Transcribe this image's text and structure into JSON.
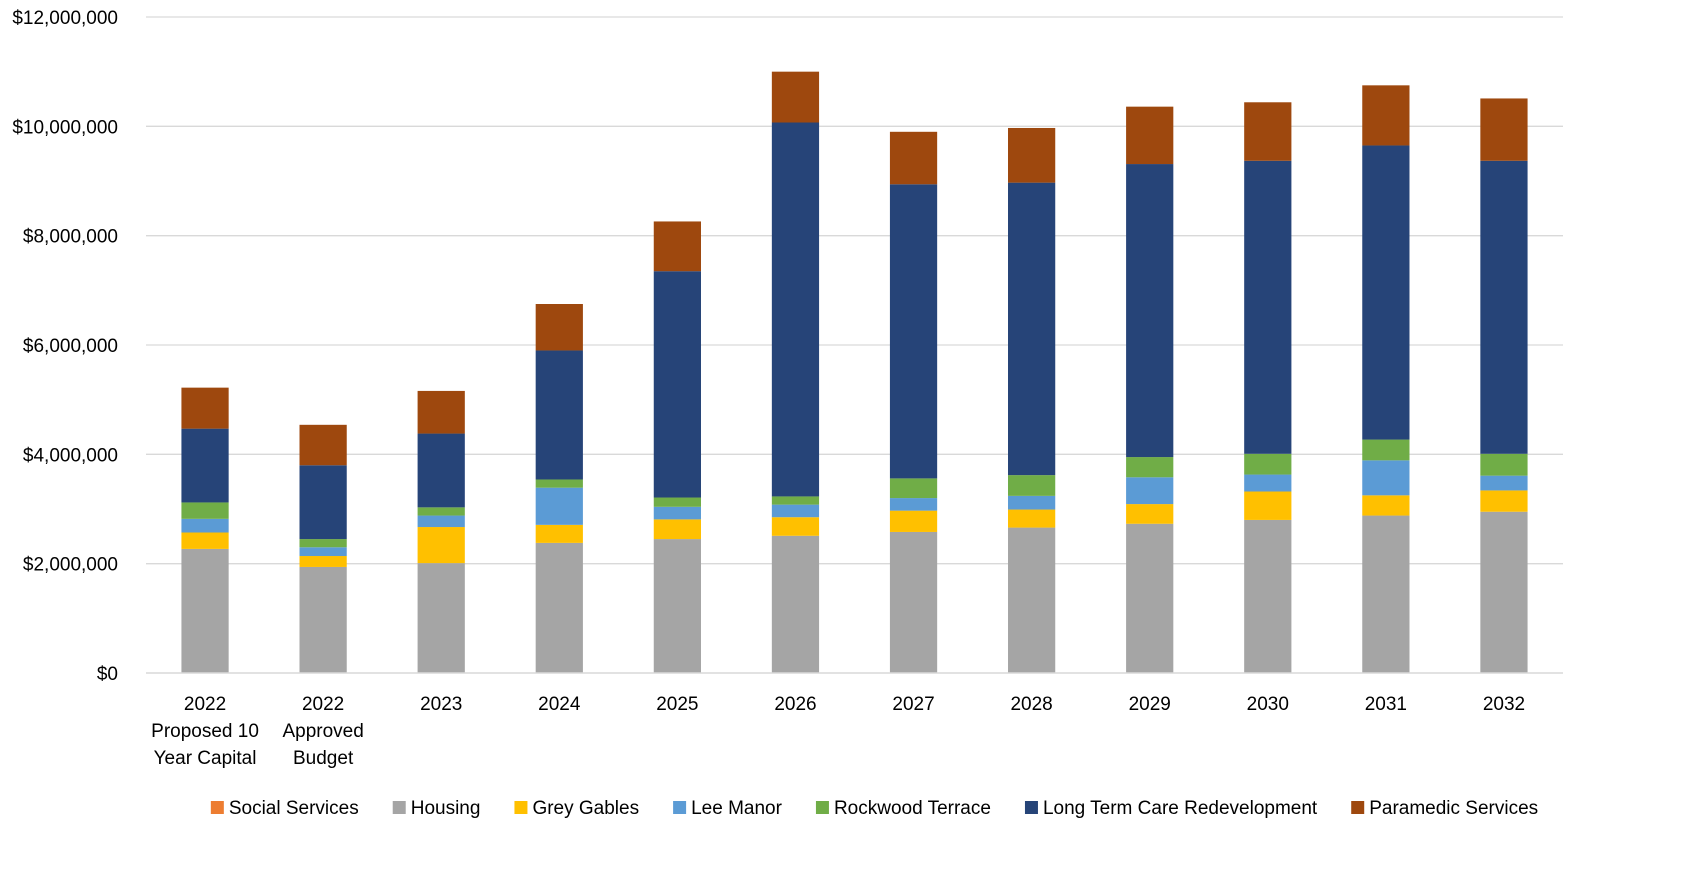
{
  "chart_data": {
    "type": "bar",
    "stacked": true,
    "title": "",
    "xlabel": "",
    "ylabel": "",
    "ylim": [
      0,
      12000000
    ],
    "yticks": [
      0,
      2000000,
      4000000,
      6000000,
      8000000,
      10000000,
      12000000
    ],
    "ytick_labels": [
      "$0",
      "$2,000,000",
      "$4,000,000",
      "$6,000,000",
      "$8,000,000",
      "$10,000,000",
      "$12,000,000"
    ],
    "grid": true,
    "legend_position": "bottom",
    "categories": [
      [
        "2022",
        "Proposed 10",
        "Year Capital"
      ],
      [
        "2022",
        "Approved",
        "Budget"
      ],
      [
        "2023"
      ],
      [
        "2024"
      ],
      [
        "2025"
      ],
      [
        "2026"
      ],
      [
        "2027"
      ],
      [
        "2028"
      ],
      [
        "2029"
      ],
      [
        "2030"
      ],
      [
        "2031"
      ],
      [
        "2032"
      ]
    ],
    "series": [
      {
        "name": "Social Services",
        "color": "#ED7D31",
        "values": [
          0,
          0,
          0,
          0,
          0,
          0,
          0,
          0,
          0,
          0,
          0,
          0
        ]
      },
      {
        "name": "Housing",
        "color": "#A5A5A5",
        "values": [
          2270000,
          1940000,
          2010000,
          2380000,
          2450000,
          2510000,
          2580000,
          2660000,
          2730000,
          2800000,
          2880000,
          2950000
        ]
      },
      {
        "name": "Grey Gables",
        "color": "#FFC000",
        "values": [
          300000,
          200000,
          660000,
          330000,
          360000,
          340000,
          390000,
          330000,
          360000,
          520000,
          370000,
          390000
        ]
      },
      {
        "name": "Lee Manor",
        "color": "#5B9BD5",
        "values": [
          250000,
          160000,
          210000,
          680000,
          230000,
          230000,
          230000,
          250000,
          490000,
          310000,
          640000,
          270000
        ]
      },
      {
        "name": "Rockwood Terrace",
        "color": "#70AD47",
        "values": [
          300000,
          150000,
          150000,
          150000,
          170000,
          150000,
          360000,
          380000,
          370000,
          380000,
          380000,
          400000
        ]
      },
      {
        "name": "Long Term Care Redevelopment",
        "color": "#264478",
        "values": [
          1350000,
          1350000,
          1350000,
          2360000,
          4140000,
          6840000,
          5380000,
          5350000,
          5360000,
          5360000,
          5380000,
          5360000
        ]
      },
      {
        "name": "Paramedic Services",
        "color": "#9E480E",
        "values": [
          750000,
          740000,
          780000,
          850000,
          910000,
          930000,
          960000,
          1000000,
          1050000,
          1070000,
          1100000,
          1140000
        ]
      }
    ]
  }
}
